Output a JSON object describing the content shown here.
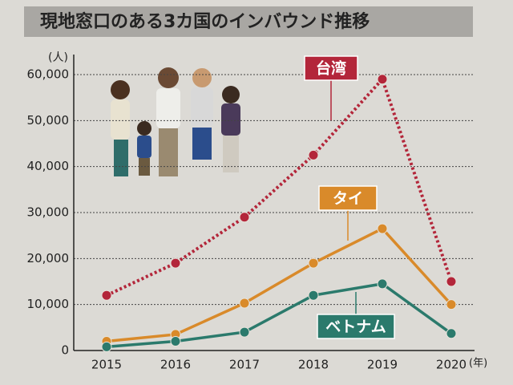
{
  "chart_data": {
    "type": "line",
    "title": "現地窓口のある3カ国のインバウンド推移",
    "y_label": "(人)",
    "x_label": "(年)",
    "categories": [
      "2015",
      "2016",
      "2017",
      "2018",
      "2019",
      "2020"
    ],
    "series": [
      {
        "name": "台湾",
        "color": "#b3263a",
        "dash": true,
        "values": [
          12000,
          19000,
          29000,
          42500,
          59000,
          15000
        ]
      },
      {
        "name": "タイ",
        "color": "#d98a2a",
        "dash": false,
        "values": [
          2000,
          3500,
          10300,
          19000,
          26500,
          10000
        ]
      },
      {
        "name": "ベトナム",
        "color": "#2b7a6c",
        "dash": false,
        "values": [
          800,
          2000,
          4000,
          12000,
          14500,
          3700
        ]
      }
    ],
    "ylim": [
      0,
      60000
    ],
    "yticks": [
      0,
      {
        "value": 10000,
        "label": "10,000"
      },
      {
        "value": 20000,
        "label": "20,000"
      },
      {
        "value": 30000,
        "label": "30,000"
      },
      {
        "value": 40000,
        "label": "40,000"
      },
      {
        "value": 50000,
        "label": "50,000"
      },
      {
        "value": 60000,
        "label": "60,000"
      }
    ],
    "grid": true
  }
}
